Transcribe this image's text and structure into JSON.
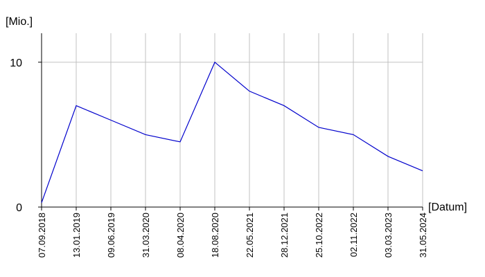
{
  "chart_data": {
    "type": "line",
    "y_label": "[Mio.]",
    "x_label": "[Datum]",
    "categories": [
      "07.09.2018",
      "13.01.2019",
      "09.06.2019",
      "31.03.2020",
      "08.04.2020",
      "18.08.2020",
      "22.05.2021",
      "28.12.2021",
      "25.10.2022",
      "02.11.2022",
      "03.03.2023",
      "31.05.2024"
    ],
    "series": [
      {
        "name": null,
        "color": "#0000cc",
        "values": [
          0.3,
          7,
          6,
          5,
          4.5,
          10,
          8,
          7,
          5.5,
          5,
          3.5,
          2.5
        ]
      }
    ],
    "ylim": [
      0,
      12
    ],
    "yticks": [
      0,
      10
    ],
    "grid": true
  }
}
